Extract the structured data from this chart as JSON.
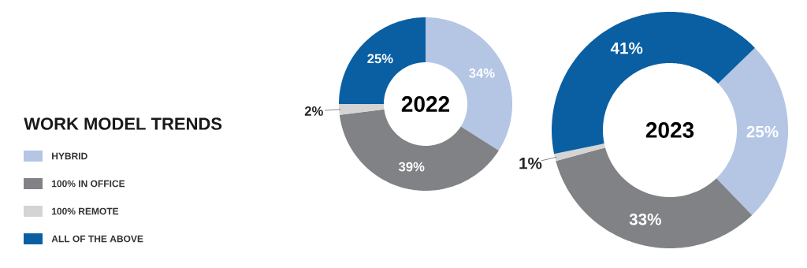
{
  "chart_data": [
    {
      "type": "donut",
      "title": "2022",
      "legend": "left",
      "legend_title": "WORK MODEL TRENDS",
      "categories": [
        "HYBRID",
        "100% IN OFFICE",
        "100% REMOTE",
        "ALL OF THE ABOVE"
      ],
      "values": [
        34,
        39,
        2,
        25
      ],
      "colors": [
        "#b4c6e4",
        "#808285",
        "#d4d4d4",
        "#0a5fa3"
      ],
      "value_labels": [
        "34%",
        "39%",
        "2%",
        "25%"
      ]
    },
    {
      "type": "donut",
      "title": "2023",
      "categories": [
        null,
        null,
        null,
        null
      ],
      "values": [
        25,
        33,
        1,
        41
      ],
      "colors": [
        "#b4c6e4",
        "#808285",
        "#d4d4d4",
        "#0a5fa3"
      ],
      "value_labels": [
        "25%",
        "33%",
        "1%",
        "41%"
      ]
    }
  ]
}
